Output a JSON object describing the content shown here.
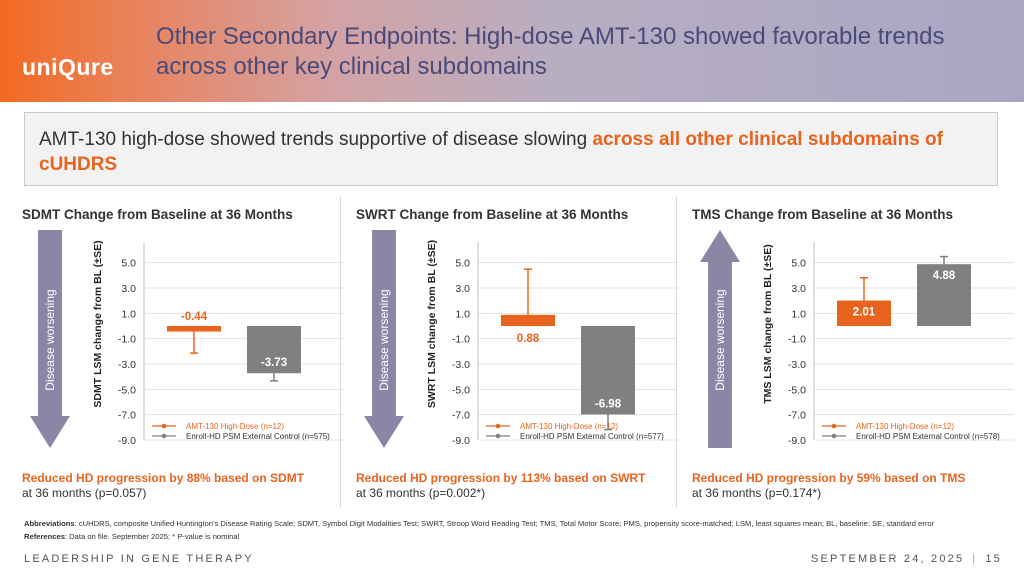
{
  "header": {
    "logo": "uniQure",
    "title": "Other Secondary Endpoints: High-dose AMT-130 showed favorable trends across other key clinical subdomains"
  },
  "callout": {
    "text_before": "AMT-130 high-dose showed trends supportive of disease slowing ",
    "text_highlight": "across all other clinical subdomains of cUHDRS"
  },
  "colors": {
    "amt": "#e8641e",
    "control": "#808080",
    "arrow": "#8a86a6",
    "accent": "#e8641e"
  },
  "chart_data": [
    {
      "type": "bar",
      "title": "SDMT Change from Baseline at 36 Months",
      "ylabel": "SDMT LSM change from BL (±SE)",
      "arrow_label": "Disease worsening",
      "arrow_direction": "down",
      "ylim": [
        -9,
        6
      ],
      "yticks": [
        "5.0",
        "3.0",
        "1.0",
        "-1.0",
        "-3.0",
        "-5.0",
        "-7.0",
        "-9.0"
      ],
      "series": [
        {
          "name": "AMT-130 High-Dose (n=12)",
          "value": -0.44,
          "label": "-0.44",
          "error": 1.7
        },
        {
          "name": "Enroll-HD PSM External Control (n=575)",
          "value": -3.73,
          "label": "-3.73",
          "error": 0.6
        }
      ],
      "summary_bold": "Reduced HD progression by 88% based on SDMT",
      "summary_text": "at 36 months (p=0.057)"
    },
    {
      "type": "bar",
      "title": "SWRT Change from Baseline at 36 Months",
      "ylabel": "SWRT LSM change from BL (±SE)",
      "arrow_label": "Disease worsening",
      "arrow_direction": "down",
      "ylim": [
        -9,
        6
      ],
      "yticks": [
        "5.0",
        "3.0",
        "1.0",
        "-1.0",
        "-3.0",
        "-5.0",
        "-7.0",
        "-9.0"
      ],
      "series": [
        {
          "name": "AMT-130 High-Dose (n=12)",
          "value": 0.88,
          "label": "0.88",
          "error": 3.6
        },
        {
          "name": "Enroll-HD PSM External Control (n=577)",
          "value": -6.98,
          "label": "-6.98",
          "error": 1.2
        }
      ],
      "summary_bold": "Reduced HD progression by 113% based on SWRT",
      "summary_text": "at 36 months (p=0.002*)"
    },
    {
      "type": "bar",
      "title": "TMS Change from Baseline at 36 Months",
      "ylabel": "TMS LSM change from BL (±SE)",
      "arrow_label": "Disease worsening",
      "arrow_direction": "up",
      "ylim": [
        -9,
        6
      ],
      "yticks": [
        "5.0",
        "3.0",
        "1.0",
        "-1.0",
        "-3.0",
        "-5.0",
        "-7.0",
        "-9.0"
      ],
      "series": [
        {
          "name": "AMT-130 High-Dose (n=12)",
          "value": 2.01,
          "label": "2.01",
          "error": 1.8
        },
        {
          "name": "Enroll-HD PSM External Control (n=578)",
          "value": 4.88,
          "label": "4.88",
          "error": 0.6
        }
      ],
      "summary_bold": "Reduced HD progression by 59% based on TMS",
      "summary_text": "at 36 months (p=0.174*)"
    }
  ],
  "footnotes": {
    "abbr_label": "Abbreviations",
    "abbr_text": ": cUHDRS, composite Unified Huntington's Disease Rating Scale; SDMT, Symbol Digit Modalities Test; SWRT, Stroop Word Reading Test; TMS, Total Motor Score; PMS, propensity score-matched; LSM, least squares mean; BL, baseline; SE, standard error",
    "ref_label": "References",
    "ref_text": ": Data on file. September 2025; * P-value is nominal"
  },
  "footer": {
    "tagline": "LEADERSHIP IN GENE THERAPY",
    "date": "SEPTEMBER 24, 2025",
    "separator": "|",
    "page": "15"
  }
}
